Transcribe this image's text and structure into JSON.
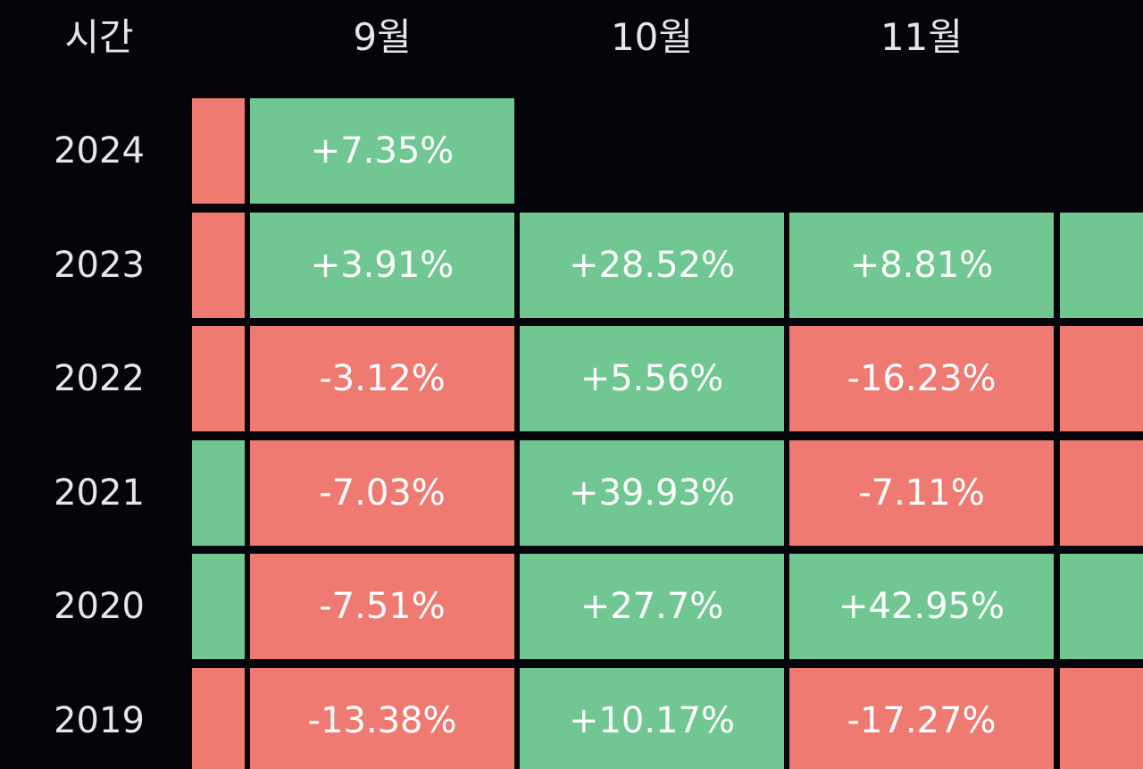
{
  "colors": {
    "background": "#03050a",
    "positive": "#70c792",
    "negative": "#ee7a72",
    "text": "#ffffff",
    "header_text": "#e6e6e6"
  },
  "header": {
    "time_label": "시간",
    "months": [
      "9월",
      "10월",
      "11월"
    ]
  },
  "chart_data": {
    "type": "heatmap",
    "title": "",
    "x_label": "",
    "y_label": "시간",
    "columns": [
      "9월",
      "10월",
      "11월"
    ],
    "rows": [
      {
        "year": "2024",
        "prev_month_sign": "negative",
        "cells": [
          "+7.35%",
          null,
          null
        ],
        "next_month_sign": null
      },
      {
        "year": "2023",
        "prev_month_sign": "negative",
        "cells": [
          "+3.91%",
          "+28.52%",
          "+8.81%"
        ],
        "next_month_sign": "positive"
      },
      {
        "year": "2022",
        "prev_month_sign": "negative",
        "cells": [
          "-3.12%",
          "+5.56%",
          "-16.23%"
        ],
        "next_month_sign": "negative"
      },
      {
        "year": "2021",
        "prev_month_sign": "positive",
        "cells": [
          "-7.03%",
          "+39.93%",
          "-7.11%"
        ],
        "next_month_sign": "negative"
      },
      {
        "year": "2020",
        "prev_month_sign": "positive",
        "cells": [
          "-7.51%",
          "+27.7%",
          "+42.95%"
        ],
        "next_month_sign": "positive"
      },
      {
        "year": "2019",
        "prev_month_sign": "negative",
        "cells": [
          "-13.38%",
          "+10.17%",
          "-17.27%"
        ],
        "next_month_sign": "negative"
      }
    ]
  }
}
